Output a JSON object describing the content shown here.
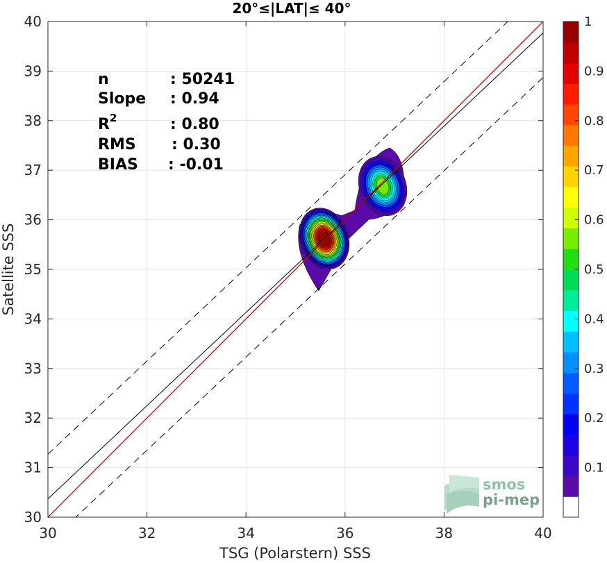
{
  "chart_data": {
    "type": "heatmap",
    "title": "20°≤|LAT|≤ 40°",
    "xlabel": "TSG (Polarstern) SSS",
    "ylabel": "Satellite SSS",
    "xlim": [
      30,
      40
    ],
    "ylim": [
      30,
      40
    ],
    "xticks": [
      30,
      32,
      34,
      36,
      38,
      40
    ],
    "yticks": [
      30,
      31,
      32,
      33,
      34,
      35,
      36,
      37,
      38,
      39,
      40
    ],
    "grid": true,
    "stats": [
      {
        "label": "n",
        "value": ": 50241"
      },
      {
        "label": "Slope",
        "value": ": 0.94"
      },
      {
        "label": "R",
        "sup": "2",
        "value": ": 0.80"
      },
      {
        "label": "RMS",
        "value": ": 0.30"
      },
      {
        "label": "BIAS",
        "value": ": -0.01"
      }
    ],
    "one_to_one_line": {
      "color": "#cc0000"
    },
    "regression_line": {
      "slope": 0.94,
      "intercept": 2.17,
      "color": "#000000"
    },
    "envelope_lines": {
      "offset": 0.9,
      "style": "dashed"
    },
    "density_clusters": [
      {
        "x": 35.58,
        "y": 35.62,
        "peak": 1.0
      },
      {
        "x": 36.76,
        "y": 36.68,
        "peak": 0.55
      }
    ],
    "colorbar": {
      "min": 0,
      "max": 1,
      "ticks": [
        0.1,
        0.2,
        0.3,
        0.4,
        0.5,
        0.6,
        0.7,
        0.8,
        0.9,
        1
      ],
      "tick_labels": [
        "0.1",
        "0.2",
        "0.3",
        "0.4",
        "0.5",
        "0.6",
        "0.7",
        "0.8",
        "0.9",
        "1"
      ],
      "colors": [
        "#ffffff",
        "#5a0aa8",
        "#3a09c8",
        "#1c00e6",
        "#0000ff",
        "#0033ff",
        "#005cff",
        "#0090ff",
        "#00bfff",
        "#00ffff",
        "#00ee9a",
        "#00dd55",
        "#22dd11",
        "#77ee00",
        "#ccff00",
        "#ffff00",
        "#ffd400",
        "#ffa500",
        "#ff7800",
        "#ff4500",
        "#ff1a00",
        "#e80000",
        "#c00000",
        "#990000"
      ]
    },
    "logo": {
      "line1": "smos",
      "line2": "pi-mep"
    }
  }
}
